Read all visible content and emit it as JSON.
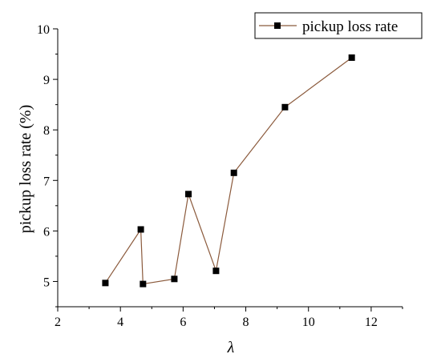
{
  "chart_data": {
    "type": "line",
    "xlabel": "λ",
    "ylabel": "pickup loss rate (%)",
    "xlim": [
      2,
      13
    ],
    "ylim": [
      4.5,
      10
    ],
    "x_ticks": [
      2,
      4,
      6,
      8,
      10,
      12
    ],
    "y_ticks": [
      5,
      6,
      7,
      8,
      9,
      10
    ],
    "x_tick_labels": [
      "2",
      "4",
      "6",
      "8",
      "10",
      "12"
    ],
    "y_tick_labels": [
      "5",
      "6",
      "7",
      "8",
      "9",
      "10"
    ],
    "legend": {
      "position": "top-right",
      "entry": "pickup loss rate"
    },
    "grid": false,
    "series": [
      {
        "name": "pickup loss rate",
        "color": "#8b5a3c",
        "marker": "square",
        "x": [
          3.52,
          4.65,
          4.72,
          5.72,
          6.17,
          7.05,
          7.62,
          9.25,
          11.38
        ],
        "y": [
          4.97,
          6.03,
          4.95,
          5.05,
          6.73,
          5.21,
          7.15,
          8.45,
          9.43
        ]
      }
    ]
  }
}
